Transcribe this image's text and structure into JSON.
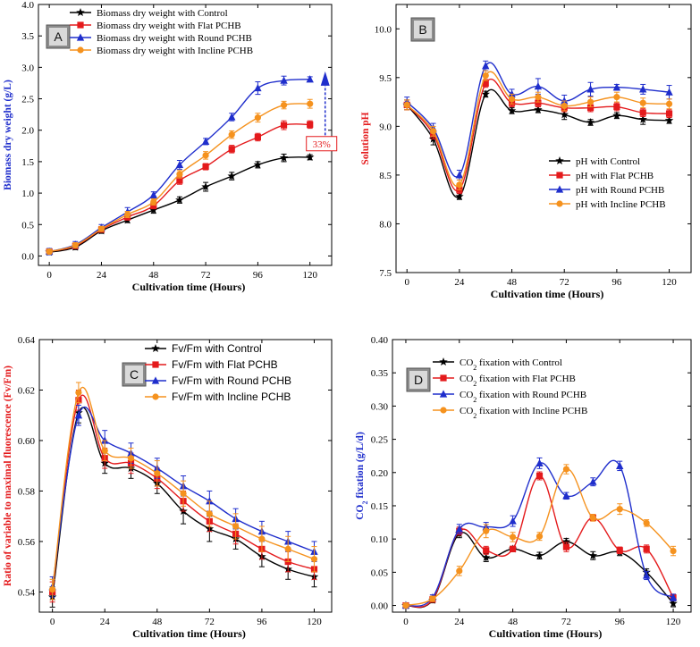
{
  "colors": {
    "control": "#000000",
    "flat": "#e41a1c",
    "round": "#1f2ecc",
    "incline": "#f5921e",
    "ylabel_A": "#1f2ecc",
    "ylabel_B": "#e41a1c",
    "ylabel_C": "#e41a1c",
    "ylabel_D": "#1f2ecc"
  },
  "chart_data": [
    {
      "id": "A",
      "type": "line",
      "panel_label": "A",
      "xlabel": "Cultivation time (Hours)",
      "ylabel": "Biomass dry weight (g/L)",
      "xlim": [
        -5,
        130
      ],
      "ylim": [
        -0.15,
        4.0
      ],
      "xticks": [
        0,
        24,
        48,
        72,
        96,
        120
      ],
      "yticks": [
        0.0,
        0.5,
        1.0,
        1.5,
        2.0,
        2.5,
        3.0,
        3.5,
        4.0
      ],
      "ytick_labels": [
        "0.0",
        "0.5",
        "1.0",
        "1.5",
        "2.0",
        "2.5",
        "3.0",
        "3.5",
        "4.0"
      ],
      "legend_position": "top-left",
      "annotation": "33%",
      "x": [
        0,
        12,
        24,
        36,
        48,
        60,
        72,
        84,
        96,
        108,
        120
      ],
      "series": [
        {
          "key": "control",
          "name": "Biomass dry weight with Control",
          "marker": "star",
          "values": [
            0.06,
            0.14,
            0.4,
            0.57,
            0.73,
            0.89,
            1.1,
            1.27,
            1.45,
            1.56,
            1.57
          ],
          "err": [
            0.04,
            0.04,
            0.04,
            0.04,
            0.05,
            0.05,
            0.07,
            0.06,
            0.05,
            0.06,
            0.04
          ]
        },
        {
          "key": "flat",
          "name": "Biomass dry weight with Flat PCHB",
          "marker": "square",
          "values": [
            0.07,
            0.16,
            0.42,
            0.62,
            0.8,
            1.2,
            1.42,
            1.7,
            1.89,
            2.08,
            2.09
          ],
          "err": [
            0.04,
            0.04,
            0.04,
            0.05,
            0.05,
            0.06,
            0.05,
            0.06,
            0.06,
            0.07,
            0.06
          ]
        },
        {
          "key": "round",
          "name": "Biomass dry weight with Round PCHB",
          "marker": "triangle",
          "values": [
            0.07,
            0.18,
            0.45,
            0.7,
            0.97,
            1.45,
            1.82,
            2.21,
            2.67,
            2.79,
            2.81
          ],
          "err": [
            0.05,
            0.05,
            0.05,
            0.07,
            0.05,
            0.07,
            0.05,
            0.06,
            0.1,
            0.07,
            0.04
          ]
        },
        {
          "key": "incline",
          "name": "Biomass dry weight with Incline PCHB",
          "marker": "circle",
          "values": [
            0.07,
            0.17,
            0.43,
            0.66,
            0.86,
            1.3,
            1.6,
            1.93,
            2.2,
            2.4,
            2.42
          ],
          "err": [
            0.04,
            0.04,
            0.04,
            0.05,
            0.05,
            0.06,
            0.06,
            0.06,
            0.07,
            0.06,
            0.07
          ]
        }
      ]
    },
    {
      "id": "B",
      "type": "line",
      "panel_label": "B",
      "xlabel": "Cultivation time (Hours)",
      "ylabel": "Solution pH",
      "xlim": [
        -5,
        130
      ],
      "ylim": [
        7.5,
        10.25
      ],
      "xticks": [
        0,
        24,
        48,
        72,
        96,
        120
      ],
      "yticks": [
        7.5,
        8.0,
        8.5,
        9.0,
        9.5,
        10.0
      ],
      "ytick_labels": [
        "7.5",
        "8.0",
        "8.5",
        "9.0",
        "9.5",
        "10.0"
      ],
      "legend_position": "bottom-right",
      "x": [
        0,
        12,
        24,
        36,
        48,
        60,
        72,
        84,
        96,
        108,
        120
      ],
      "series": [
        {
          "key": "control",
          "name": "pH with Control",
          "marker": "star",
          "values": [
            9.22,
            8.87,
            8.28,
            9.33,
            9.16,
            9.17,
            9.12,
            9.04,
            9.11,
            9.07,
            9.06
          ],
          "err": [
            0.05,
            0.06,
            0.03,
            0.03,
            0.03,
            0.03,
            0.05,
            0.03,
            0.03,
            0.05,
            0.03
          ]
        },
        {
          "key": "flat",
          "name": "pH with Flat PCHB",
          "marker": "square",
          "values": [
            9.22,
            8.92,
            8.35,
            9.44,
            9.24,
            9.24,
            9.19,
            9.19,
            9.2,
            9.14,
            9.13
          ],
          "err": [
            0.05,
            0.05,
            0.04,
            0.04,
            0.04,
            0.04,
            0.04,
            0.04,
            0.04,
            0.04,
            0.04
          ]
        },
        {
          "key": "round",
          "name": "pH with Round PCHB",
          "marker": "triangle",
          "values": [
            9.25,
            8.98,
            8.5,
            9.62,
            9.33,
            9.41,
            9.26,
            9.38,
            9.4,
            9.38,
            9.35
          ],
          "err": [
            0.05,
            0.05,
            0.05,
            0.05,
            0.05,
            0.08,
            0.06,
            0.07,
            0.03,
            0.05,
            0.07
          ]
        },
        {
          "key": "incline",
          "name": "pH with Incline PCHB",
          "marker": "circle",
          "values": [
            9.22,
            8.95,
            8.4,
            9.52,
            9.28,
            9.3,
            9.21,
            9.25,
            9.3,
            9.24,
            9.23
          ],
          "err": [
            0.05,
            0.05,
            0.05,
            0.05,
            0.05,
            0.05,
            0.05,
            0.05,
            0.05,
            0.05,
            0.05
          ]
        }
      ]
    },
    {
      "id": "C",
      "type": "line",
      "panel_label": "C",
      "xlabel": "Cultivation time (Hours)",
      "ylabel": "Ratio of variable to maximal fluorescence (Fv/Fm)",
      "xlim": [
        -6,
        128
      ],
      "ylim": [
        0.532,
        0.64
      ],
      "xticks": [
        0,
        24,
        48,
        72,
        96,
        120
      ],
      "yticks": [
        0.54,
        0.56,
        0.58,
        0.6,
        0.62,
        0.64
      ],
      "ytick_labels": [
        "0.54",
        "0.56",
        "0.58",
        "0.60",
        "0.62",
        "0.64"
      ],
      "legend_position": "top-right",
      "x": [
        0,
        12,
        24,
        36,
        48,
        60,
        72,
        84,
        96,
        108,
        120
      ],
      "series": [
        {
          "key": "control",
          "name": "Fv/Fm with Control",
          "marker": "star",
          "values": [
            0.538,
            0.611,
            0.591,
            0.589,
            0.583,
            0.572,
            0.565,
            0.561,
            0.554,
            0.549,
            0.546
          ],
          "err": [
            0.004,
            0.004,
            0.004,
            0.004,
            0.004,
            0.005,
            0.005,
            0.004,
            0.004,
            0.004,
            0.004
          ]
        },
        {
          "key": "flat",
          "name": "Fv/Fm with Flat PCHB",
          "marker": "square",
          "values": [
            0.54,
            0.616,
            0.593,
            0.591,
            0.585,
            0.576,
            0.568,
            0.563,
            0.557,
            0.552,
            0.549
          ],
          "err": [
            0.004,
            0.004,
            0.004,
            0.004,
            0.004,
            0.004,
            0.004,
            0.004,
            0.004,
            0.004,
            0.004
          ]
        },
        {
          "key": "round",
          "name": "Fv/Fm with Round PCHB",
          "marker": "triangle",
          "values": [
            0.542,
            0.61,
            0.6,
            0.595,
            0.589,
            0.582,
            0.576,
            0.569,
            0.564,
            0.56,
            0.556
          ],
          "err": [
            0.004,
            0.004,
            0.004,
            0.004,
            0.004,
            0.004,
            0.004,
            0.004,
            0.004,
            0.004,
            0.004
          ]
        },
        {
          "key": "incline",
          "name": "Fv/Fm with Incline PCHB",
          "marker": "circle",
          "values": [
            0.541,
            0.619,
            0.596,
            0.593,
            0.587,
            0.579,
            0.571,
            0.566,
            0.561,
            0.557,
            0.553
          ],
          "err": [
            0.004,
            0.004,
            0.004,
            0.004,
            0.005,
            0.005,
            0.005,
            0.005,
            0.005,
            0.005,
            0.005
          ]
        }
      ]
    },
    {
      "id": "D",
      "type": "line",
      "panel_label": "D",
      "xlabel": "Cultivation time (Hours)",
      "ylabel": "CO2 fixation (g/L/d)",
      "xlim": [
        -6,
        128
      ],
      "ylim": [
        -0.01,
        0.4
      ],
      "xticks": [
        0,
        24,
        48,
        72,
        96,
        120
      ],
      "yticks": [
        0.0,
        0.05,
        0.1,
        0.15,
        0.2,
        0.25,
        0.3,
        0.35,
        0.4
      ],
      "ytick_labels": [
        "0.00",
        "0.05",
        "0.10",
        "0.15",
        "0.20",
        "0.25",
        "0.30",
        "0.35",
        "0.40"
      ],
      "legend_position": "top-right",
      "x": [
        0,
        12,
        24,
        36,
        48,
        60,
        72,
        84,
        96,
        108,
        120
      ],
      "series": [
        {
          "key": "control",
          "name": "CO2 fixation with Control",
          "marker": "star",
          "values": [
            0.0,
            0.008,
            0.108,
            0.072,
            0.085,
            0.075,
            0.096,
            0.075,
            0.08,
            0.05,
            0.003
          ],
          "err": [
            0.003,
            0.004,
            0.006,
            0.006,
            0.004,
            0.005,
            0.005,
            0.006,
            0.005,
            0.005,
            0.005
          ]
        },
        {
          "key": "flat",
          "name": "CO2 fixation with Flat PCHB",
          "marker": "square",
          "values": [
            0.0,
            0.009,
            0.112,
            0.083,
            0.085,
            0.195,
            0.088,
            0.132,
            0.083,
            0.085,
            0.012
          ],
          "err": [
            0.003,
            0.004,
            0.006,
            0.006,
            0.004,
            0.006,
            0.007,
            0.005,
            0.005,
            0.006,
            0.005
          ]
        },
        {
          "key": "round",
          "name": "CO2 fixation with Round PCHB",
          "marker": "triangle",
          "values": [
            0.0,
            0.012,
            0.115,
            0.118,
            0.127,
            0.214,
            0.165,
            0.186,
            0.21,
            0.045,
            0.012
          ],
          "err": [
            0.003,
            0.004,
            0.007,
            0.007,
            0.008,
            0.008,
            0.005,
            0.006,
            0.007,
            0.006,
            0.005
          ]
        },
        {
          "key": "incline",
          "name": "CO2 fixation with Incline PCHB",
          "marker": "circle",
          "values": [
            0.0,
            0.01,
            0.052,
            0.112,
            0.103,
            0.104,
            0.205,
            0.132,
            0.145,
            0.124,
            0.082
          ],
          "err": [
            0.003,
            0.004,
            0.007,
            0.01,
            0.007,
            0.006,
            0.007,
            0.005,
            0.008,
            0.005,
            0.007
          ]
        }
      ]
    }
  ]
}
